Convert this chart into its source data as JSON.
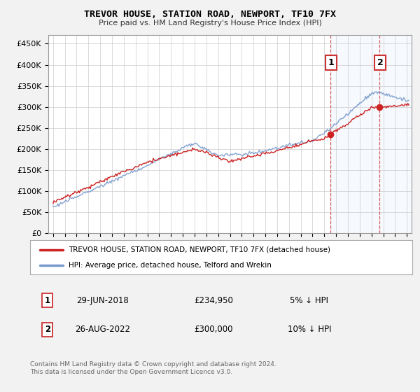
{
  "title": "TREVOR HOUSE, STATION ROAD, NEWPORT, TF10 7FX",
  "subtitle": "Price paid vs. HM Land Registry's House Price Index (HPI)",
  "ylabel_ticks": [
    "£0",
    "£50K",
    "£100K",
    "£150K",
    "£200K",
    "£250K",
    "£300K",
    "£350K",
    "£400K",
    "£450K"
  ],
  "ytick_vals": [
    0,
    50000,
    100000,
    150000,
    200000,
    250000,
    300000,
    350000,
    400000,
    450000
  ],
  "ylim": [
    0,
    470000
  ],
  "xlim_start": 1994.6,
  "xlim_end": 2025.4,
  "hpi_color": "#7799cc",
  "price_color": "#cc2222",
  "sale1_x": 2018.49,
  "sale1_y": 234950,
  "sale2_x": 2022.65,
  "sale2_y": 300000,
  "legend_label1": "TREVOR HOUSE, STATION ROAD, NEWPORT, TF10 7FX (detached house)",
  "legend_label2": "HPI: Average price, detached house, Telford and Wrekin",
  "table_row1": [
    "1",
    "29-JUN-2018",
    "£234,950",
    "5% ↓ HPI"
  ],
  "table_row2": [
    "2",
    "26-AUG-2022",
    "£300,000",
    "10% ↓ HPI"
  ],
  "footnote": "Contains HM Land Registry data © Crown copyright and database right 2024.\nThis data is licensed under the Open Government Licence v3.0.",
  "vline_color": "#cc3333",
  "fig_bg": "#f0f0f0",
  "plot_bg": "#ffffff",
  "grid_color": "#cccccc",
  "shade_color": "#dde8f8"
}
